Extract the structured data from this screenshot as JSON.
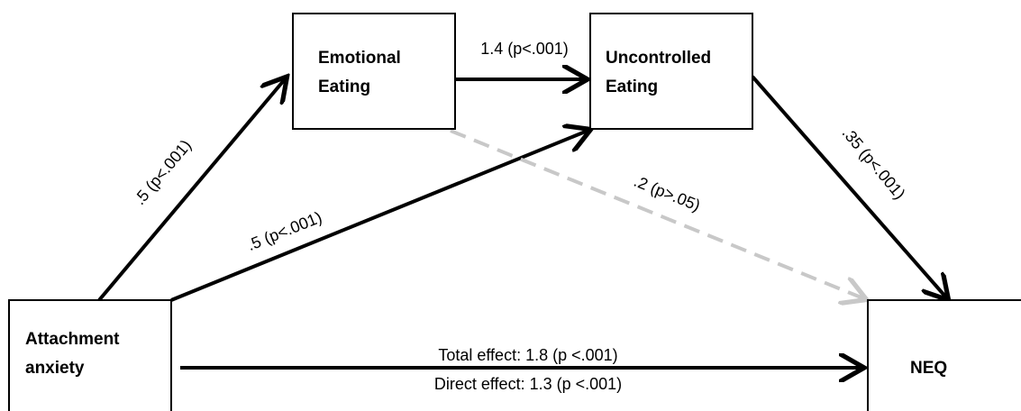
{
  "nodes": [
    {
      "lines": [
        "Emotional",
        "Eating"
      ]
    },
    {
      "lines": [
        "Uncontrolled",
        "Eating"
      ]
    },
    {
      "lines": [
        "Attachment",
        "anxiety"
      ]
    },
    {
      "lines": [
        "NEQ"
      ]
    }
  ],
  "edges": [
    {
      "label": ".5 (p<.001)"
    },
    {
      "label": "1.4 (p<.001)"
    },
    {
      "label": ".5 (p<.001)"
    },
    {
      "label": ".35 (p<.001)"
    },
    {
      "label": ".2 (p>.05)"
    },
    {
      "label": "Total effect: 1.8 (p <.001)",
      "label2": "Direct effect: 1.3 (p <.001)"
    }
  ]
}
